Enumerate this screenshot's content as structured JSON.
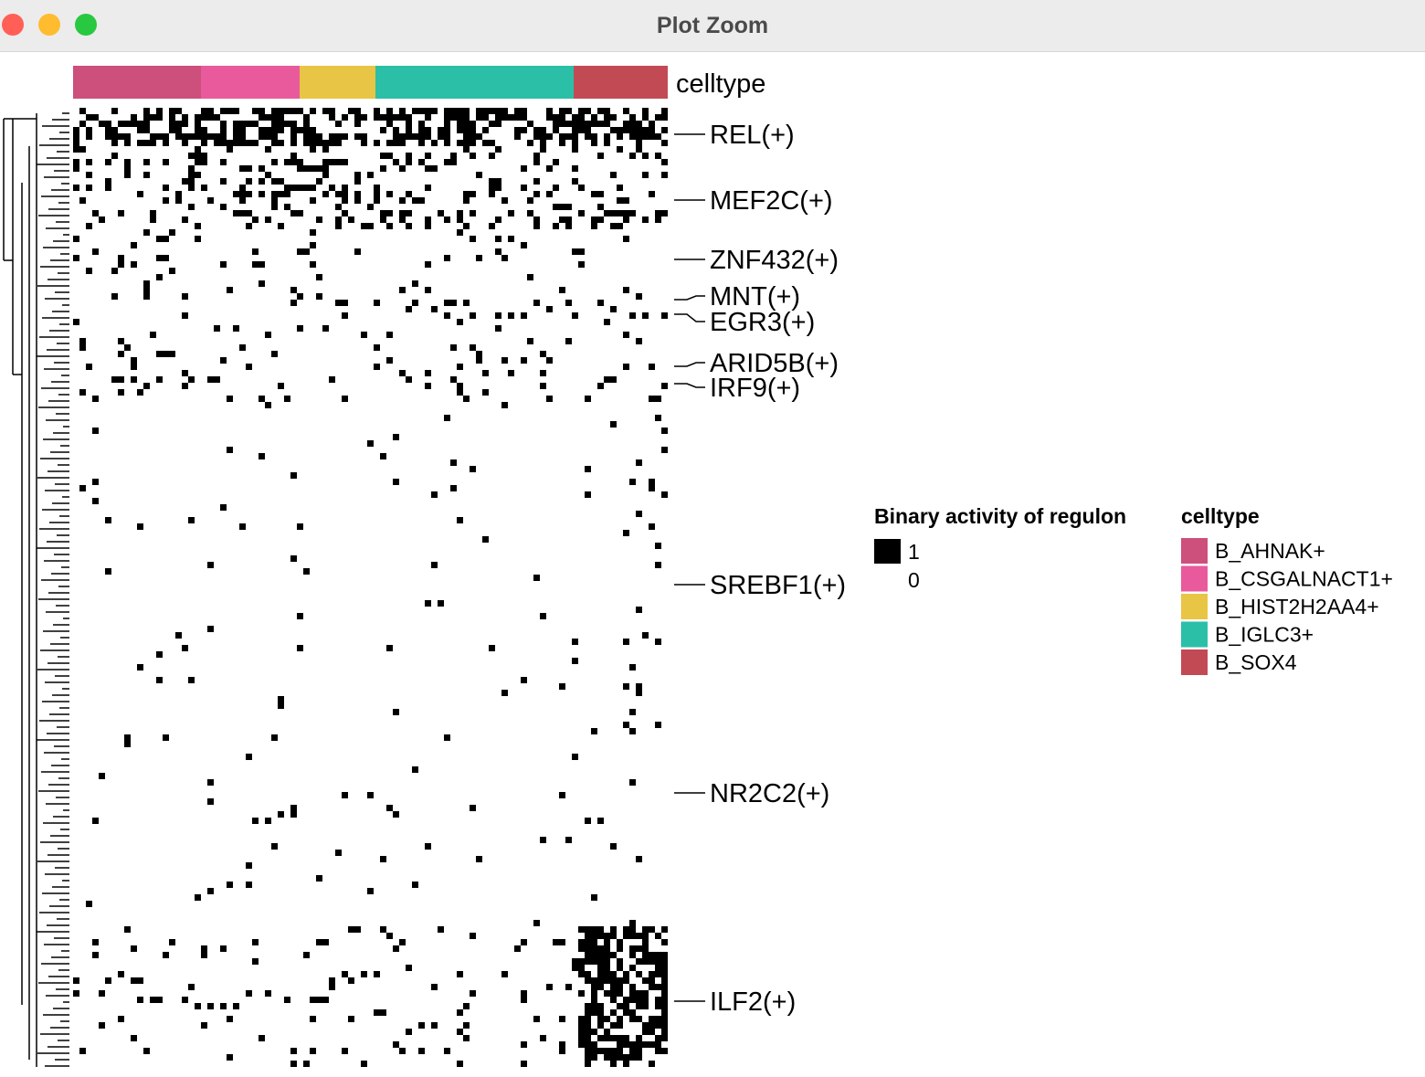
{
  "window": {
    "title": "Plot Zoom"
  },
  "heatmap": {
    "annotation_title": "celltype",
    "celltypes": [
      {
        "name": "B_AHNAK+",
        "color": "#cc4f7c"
      },
      {
        "name": "B_CSGALNACT1+",
        "color": "#e85a9c"
      },
      {
        "name": "B_HIST2H2AA4+",
        "color": "#e8c544"
      },
      {
        "name": "B_IGLC3+",
        "color": "#2bbfa8"
      },
      {
        "name": "B_SOX4",
        "color": "#c24a55"
      }
    ],
    "row_labels": [
      "REL(+)",
      "MEF2C(+)",
      "ZNF432(+)",
      "MNT(+)",
      "EGR3(+)",
      "ARID5B(+)",
      "IRF9(+)",
      "SREBF1(+)",
      "NR2C2(+)",
      "ILF2(+)"
    ],
    "legend_activity": {
      "title": "Binary activity of regulon",
      "items": [
        {
          "label": "1",
          "color": "#000000"
        },
        {
          "label": "0",
          "color": "#ffffff"
        }
      ]
    },
    "legend_celltype": {
      "title": "celltype"
    }
  }
}
